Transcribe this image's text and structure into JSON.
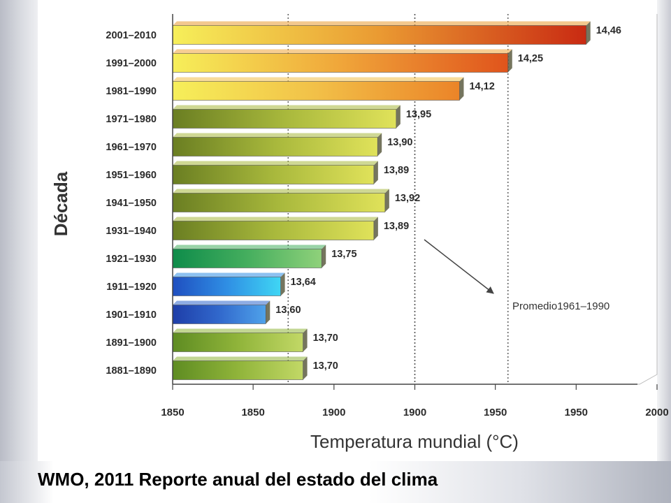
{
  "caption": "WMO, 2011 Reporte anual del estado del clima",
  "chart_data": {
    "type": "bar",
    "orientation": "horizontal",
    "ylabel": "Década",
    "xlabel": "Temperatura mundial (°C)",
    "x_tick_labels": [
      "1850",
      "1850",
      "1900",
      "1900",
      "1950",
      "1950",
      "2000"
    ],
    "xlim": [
      13.35,
      14.65
    ],
    "x_ticks": [
      13.35,
      13.566,
      13.783,
      14.0,
      14.216,
      14.433,
      14.65
    ],
    "categories": [
      "2001–2010",
      "1991–2000",
      "1981–1990",
      "1971–1980",
      "1961–1970",
      "1951–1960",
      "1941–1950",
      "1931–1940",
      "1921–1930",
      "1911–1920",
      "1901–1910",
      "1891–1900",
      "1881–1890"
    ],
    "values": [
      14.46,
      14.25,
      14.12,
      13.95,
      13.9,
      13.89,
      13.92,
      13.89,
      13.75,
      13.64,
      13.6,
      13.7,
      13.7
    ],
    "value_labels": [
      "14,46",
      "14,25",
      "14,12",
      "13,95",
      "13,90",
      "13,89",
      "13,92",
      "13,89",
      "13,75",
      "13,64",
      "13,60",
      "13,70",
      "13,70"
    ],
    "bar_colors": [
      [
        "#f6ef5a",
        "#ea9a32",
        "#c92a12"
      ],
      [
        "#f6ef5a",
        "#f0a63a",
        "#e0541c"
      ],
      [
        "#f6ef5a",
        "#f2c048",
        "#eb8428"
      ],
      [
        "#6a7e22",
        "#a8b83c",
        "#e0e25a"
      ],
      [
        "#6a7e22",
        "#a8b83c",
        "#e0e25a"
      ],
      [
        "#6a7e22",
        "#a8b83c",
        "#e0e25a"
      ],
      [
        "#6a7e22",
        "#a8b83c",
        "#e0e25a"
      ],
      [
        "#6a7e22",
        "#a8b83c",
        "#e0e25a"
      ],
      [
        "#0e8c4a",
        "#45ae5e",
        "#8fd17a"
      ],
      [
        "#1f4fc0",
        "#2f8ee4",
        "#3fd6f4"
      ],
      [
        "#1e3ea8",
        "#3168cc",
        "#4fa2ea"
      ],
      [
        "#5e8c22",
        "#90b43a",
        "#c2d866"
      ],
      [
        "#5e8c22",
        "#90b43a",
        "#c2d866"
      ]
    ],
    "reference_lines": [
      13.66,
      14.0,
      14.0,
      14.25
    ],
    "annotation": "Promedio1961–1990",
    "grid": false,
    "legend": "none"
  }
}
